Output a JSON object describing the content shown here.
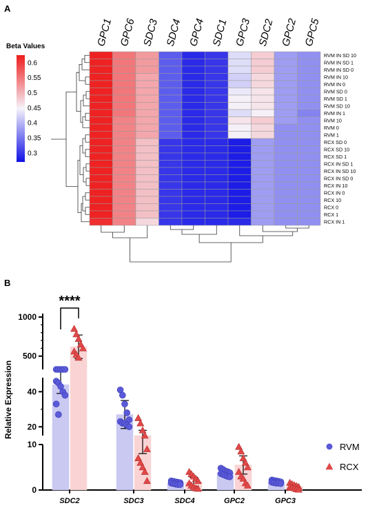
{
  "panels": {
    "a": "A",
    "b": "B"
  },
  "chart_data": [
    {
      "type": "heatmap",
      "colorbar": {
        "title": "Beta Values",
        "ticks": [
          "0.6",
          "0.55",
          "0.5",
          "0.45",
          "0.4",
          "0.35",
          "0.3"
        ],
        "tick_values": [
          0.6,
          0.55,
          0.5,
          0.45,
          0.4,
          0.35,
          0.3
        ],
        "range": [
          0.27,
          0.625
        ],
        "low_color": "#1010e6",
        "mid_color": "#f5f3fa",
        "high_color": "#ee1c1c"
      },
      "columns": [
        "GPC1",
        "GPC6",
        "SDC3",
        "SDC4",
        "GPC4",
        "SDC1",
        "GPC3",
        "SDC2",
        "GPC2",
        "GPC5"
      ],
      "rows": [
        "RVM IN SD 10",
        "RVM IN SD 1",
        "RVM IN SD 0",
        "RVM IN 10",
        "RVM IN 0",
        "RVM SD 0",
        "RVM SD 1",
        "RVM SD 10",
        "RVM IN 1",
        "RVM 10",
        "RVM 0",
        "RVM 1",
        "RCX SD 0",
        "RCX SD 10",
        "RCX SD 1",
        "RCX IN SD 1",
        "RCX IN SD 10",
        "RCX IN SD 0",
        "RCX IN 10",
        "RCX IN 0",
        "RCX 10",
        "RCX 0",
        "RCX 1",
        "RCX IN 1"
      ],
      "values": [
        [
          0.62,
          0.55,
          0.52,
          0.33,
          0.29,
          0.3,
          0.43,
          0.48,
          0.38,
          0.37
        ],
        [
          0.62,
          0.55,
          0.52,
          0.33,
          0.29,
          0.3,
          0.43,
          0.48,
          0.38,
          0.37
        ],
        [
          0.62,
          0.55,
          0.52,
          0.33,
          0.29,
          0.3,
          0.43,
          0.48,
          0.38,
          0.37
        ],
        [
          0.62,
          0.55,
          0.51,
          0.33,
          0.29,
          0.3,
          0.42,
          0.47,
          0.38,
          0.37
        ],
        [
          0.62,
          0.55,
          0.51,
          0.33,
          0.29,
          0.3,
          0.42,
          0.47,
          0.38,
          0.37
        ],
        [
          0.62,
          0.55,
          0.51,
          0.33,
          0.29,
          0.3,
          0.44,
          0.46,
          0.38,
          0.37
        ],
        [
          0.62,
          0.55,
          0.51,
          0.33,
          0.29,
          0.3,
          0.45,
          0.46,
          0.38,
          0.37
        ],
        [
          0.62,
          0.55,
          0.51,
          0.33,
          0.29,
          0.3,
          0.45,
          0.46,
          0.38,
          0.37
        ],
        [
          0.62,
          0.55,
          0.51,
          0.33,
          0.29,
          0.3,
          0.43,
          0.45,
          0.38,
          0.36
        ],
        [
          0.62,
          0.54,
          0.51,
          0.33,
          0.29,
          0.3,
          0.46,
          0.48,
          0.38,
          0.37
        ],
        [
          0.62,
          0.54,
          0.51,
          0.33,
          0.29,
          0.3,
          0.45,
          0.47,
          0.37,
          0.37
        ],
        [
          0.62,
          0.54,
          0.51,
          0.33,
          0.29,
          0.3,
          0.45,
          0.47,
          0.37,
          0.37
        ],
        [
          0.62,
          0.54,
          0.49,
          0.3,
          0.29,
          0.29,
          0.28,
          0.38,
          0.37,
          0.37
        ],
        [
          0.62,
          0.54,
          0.49,
          0.3,
          0.29,
          0.29,
          0.28,
          0.38,
          0.37,
          0.37
        ],
        [
          0.62,
          0.54,
          0.49,
          0.3,
          0.29,
          0.29,
          0.28,
          0.38,
          0.37,
          0.37
        ],
        [
          0.62,
          0.54,
          0.49,
          0.3,
          0.29,
          0.29,
          0.28,
          0.38,
          0.37,
          0.37
        ],
        [
          0.62,
          0.54,
          0.49,
          0.3,
          0.29,
          0.29,
          0.28,
          0.38,
          0.37,
          0.37
        ],
        [
          0.62,
          0.54,
          0.49,
          0.3,
          0.29,
          0.29,
          0.28,
          0.38,
          0.37,
          0.37
        ],
        [
          0.62,
          0.54,
          0.49,
          0.3,
          0.29,
          0.29,
          0.28,
          0.38,
          0.37,
          0.37
        ],
        [
          0.62,
          0.54,
          0.49,
          0.3,
          0.29,
          0.29,
          0.28,
          0.38,
          0.37,
          0.37
        ],
        [
          0.62,
          0.54,
          0.49,
          0.3,
          0.29,
          0.29,
          0.28,
          0.38,
          0.37,
          0.37
        ],
        [
          0.62,
          0.54,
          0.49,
          0.3,
          0.29,
          0.29,
          0.28,
          0.38,
          0.37,
          0.37
        ],
        [
          0.62,
          0.54,
          0.49,
          0.3,
          0.29,
          0.29,
          0.28,
          0.38,
          0.37,
          0.37
        ],
        [
          0.61,
          0.54,
          0.47,
          0.3,
          0.29,
          0.29,
          0.29,
          0.38,
          0.37,
          0.37
        ]
      ],
      "row_dendrogram": true,
      "column_dendrogram": true
    },
    {
      "type": "bar",
      "ylabel": "Relative Expression",
      "categories": [
        "SDC2",
        "SDC3",
        "SDC4",
        "GPC2",
        "GPC3"
      ],
      "yticks": [
        "0",
        "10",
        "20",
        "40",
        "500",
        "1000"
      ],
      "y_axis_breaks": [
        [
          10,
          15
        ],
        [
          48,
          330
        ]
      ],
      "series": [
        {
          "name": "RVM",
          "color": "#5a5ad8",
          "bar_color": "#c9c9f2",
          "marker": "circle",
          "values": [
            44,
            27,
            1.6,
            3.8,
            1.8
          ],
          "error": [
            5,
            8,
            0.4,
            0.8,
            0.4
          ],
          "points": [
            [
              80,
              80,
              80,
              80,
              50,
              46,
              45,
              43,
              40,
              38,
              33,
              27
            ],
            [
              41,
              38,
              33,
              28,
              24,
              23,
              22,
              22,
              21,
              20
            ],
            [
              2.0,
              1.9,
              1.8,
              1.7,
              1.6,
              1.5,
              1.4,
              1.3,
              1.2,
              1.2
            ],
            [
              4.8,
              4.5,
              4.2,
              4.0,
              3.8,
              3.6,
              3.4,
              3.2,
              3.0,
              2.9
            ],
            [
              2.2,
              2.1,
              2.0,
              1.9,
              1.8,
              1.7,
              1.6,
              1.5,
              1.5,
              1.4
            ]
          ]
        },
        {
          "name": "RCX",
          "color": "#e04848",
          "bar_color": "#fad4d4",
          "marker": "triangle",
          "values": [
            620,
            13,
            1.8,
            5.5,
            0.8
          ],
          "error": [
            150,
            5,
            1.0,
            2.0,
            0.4
          ],
          "points": [
            [
              850,
              780,
              720,
              650,
              600,
              560,
              520,
              480
            ],
            [
              25,
              22,
              18,
              15,
              9,
              7,
              6,
              5,
              4,
              2
            ],
            [
              4.0,
              3.5,
              3.0,
              2.5,
              2.0,
              1.5,
              1.0,
              0.7,
              0.4,
              0.3
            ],
            [
              9.5,
              8.5,
              7.0,
              6.0,
              5.0,
              4.0,
              3.0,
              2.5,
              1.5,
              1.0
            ],
            [
              1.6,
              1.3,
              1.1,
              0.9,
              0.7,
              0.6,
              0.5,
              0.4,
              0.2,
              0.1
            ]
          ]
        }
      ],
      "significance": {
        "label": "****",
        "category": "SDC2"
      },
      "legend": "right"
    }
  ]
}
